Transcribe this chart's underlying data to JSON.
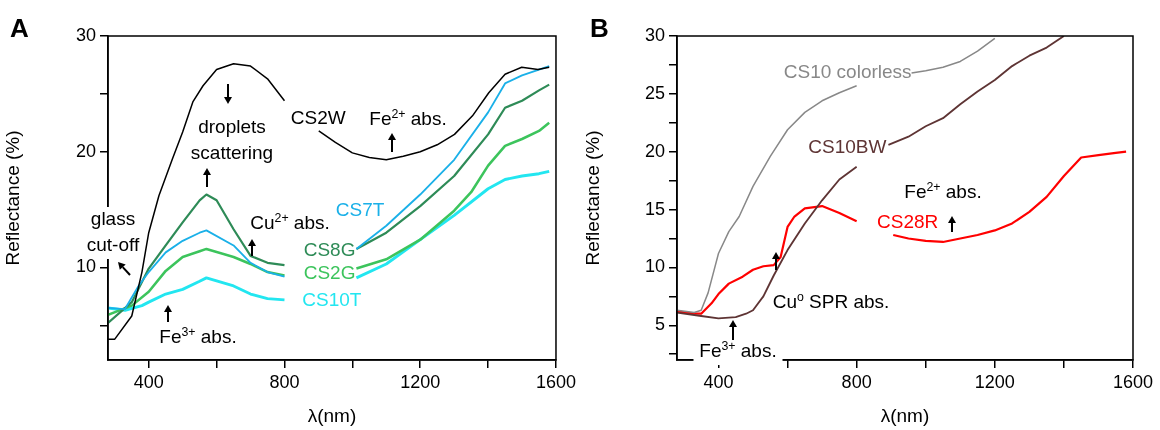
{
  "chart_data": [
    {
      "type": "line",
      "xlabel": "λ(nm)",
      "ylabel": "Reflectance (%)",
      "xlim": [
        280,
        1600
      ],
      "ylim": [
        2,
        30
      ],
      "xticks": [
        400,
        {
          "value": 600,
          "label": null
        },
        800,
        {
          "value": 1000,
          "label": null
        },
        1200,
        {
          "value": 1400,
          "label": null
        },
        1600
      ],
      "yticks": [
        {
          "value": 5,
          "label": null
        },
        10,
        {
          "value": 15,
          "label": null
        },
        20,
        {
          "value": 25,
          "label": null
        },
        30
      ],
      "grid": false,
      "legend": false,
      "annotations": [
        "A",
        "glass\ncut-off",
        "droplets\nscattering",
        "Cu$^{2+}$ abs.",
        "Fe$^{3+}$ abs.",
        "Fe$^{2+}$ abs."
      ],
      "series": [
        {
          "name": "CS2W",
          "color": "#000000",
          "x": [
            280,
            300,
            350,
            380,
            400,
            430,
            470,
            500,
            530,
            560,
            600,
            650,
            700,
            750,
            800,
            850,
            901,
            950,
            1000,
            1050,
            1100,
            1150,
            1200,
            1250,
            1301,
            1354,
            1402,
            1450,
            1499,
            1547,
            1580
          ],
          "values": [
            3.8,
            3.8,
            5.8,
            9.6,
            13.0,
            16.2,
            19.4,
            21.7,
            24.3,
            25.7,
            27.1,
            27.6,
            27.4,
            26.3,
            24.4,
            null,
            21.8,
            20.8,
            19.9,
            19.5,
            19.3,
            19.6,
            20.0,
            20.6,
            21.5,
            23.1,
            25.1,
            26.7,
            27.3,
            27.1,
            27.3
          ]
        },
        {
          "name": "CS7T",
          "color": "#1ab0e8",
          "x": [
            280,
            330,
            370,
            400,
            450,
            500,
            550,
            570,
            650,
            700,
            750,
            800,
            900,
            1012,
            1100,
            1200,
            1300,
            1400,
            1450,
            1500,
            1550,
            1580
          ],
          "values": [
            6.5,
            6.4,
            8.4,
            9.6,
            11.3,
            12.3,
            13.0,
            13.2,
            11.9,
            10.4,
            9.6,
            9.2,
            null,
            11.6,
            13.6,
            16.3,
            19.3,
            23.4,
            25.9,
            26.6,
            27.1,
            27.4
          ]
        },
        {
          "name": "CS8G",
          "color": "#2e8b57",
          "x": [
            280,
            350,
            400,
            450,
            500,
            550,
            570,
            600,
            650,
            700,
            750,
            800,
            900,
            1012,
            1100,
            1200,
            1300,
            1400,
            1450,
            1500,
            1550,
            1580
          ],
          "values": [
            5.2,
            7.0,
            9.9,
            11.9,
            13.9,
            15.8,
            16.3,
            15.8,
            13.3,
            11.0,
            10.4,
            10.2,
            null,
            11.6,
            13.0,
            15.3,
            17.9,
            21.5,
            23.8,
            24.4,
            25.3,
            25.8
          ]
        },
        {
          "name": "CS2G",
          "color": "#3cc45c",
          "x": [
            280,
            350,
            400,
            450,
            500,
            550,
            570,
            650,
            700,
            750,
            800,
            900,
            1012,
            1100,
            1200,
            1300,
            1350,
            1400,
            1450,
            1500,
            1550,
            1580
          ],
          "values": [
            5.9,
            6.7,
            7.9,
            9.7,
            10.9,
            11.4,
            11.6,
            10.9,
            10.3,
            9.6,
            9.3,
            null,
            9.9,
            10.7,
            12.4,
            14.9,
            16.5,
            18.8,
            20.5,
            21.1,
            21.8,
            22.5
          ]
        },
        {
          "name": "CS10T",
          "color": "#22e6f0",
          "x": [
            280,
            330,
            380,
            400,
            450,
            500,
            550,
            570,
            650,
            700,
            750,
            800,
            900,
            1012,
            1100,
            1200,
            1300,
            1400,
            1450,
            1500,
            1550,
            1580
          ],
          "values": [
            6.5,
            6.3,
            6.7,
            7.0,
            7.7,
            8.1,
            8.8,
            9.1,
            8.4,
            7.7,
            7.3,
            7.2,
            null,
            9.1,
            10.3,
            12.4,
            14.5,
            16.8,
            17.6,
            17.9,
            18.1,
            18.3
          ]
        }
      ]
    },
    {
      "type": "line",
      "xlabel": "λ(nm)",
      "ylabel": "Reflectance (%)",
      "xlim": [
        280,
        1600
      ],
      "ylim": [
        2,
        30
      ],
      "xticks": [
        400,
        {
          "value": 600,
          "label": null
        },
        800,
        {
          "value": 1000,
          "label": null
        },
        1200,
        {
          "value": 1400,
          "label": null
        },
        1600
      ],
      "yticks": [
        {
          "value": 2.5,
          "label": null
        },
        5,
        {
          "value": 7.5,
          "label": null
        },
        10,
        {
          "value": 12.5,
          "label": null
        },
        15,
        {
          "value": 17.5,
          "label": null
        },
        20,
        {
          "value": 22.5,
          "label": null
        },
        25,
        {
          "value": 27.5,
          "label": null
        },
        30
      ],
      "grid": false,
      "legend": false,
      "annotations": [
        "B",
        "Fe$^{2+}$ abs.",
        "Cu$^{o}$ SPR abs.",
        "Fe$^{3+}$ abs."
      ],
      "series": [
        {
          "name": "CS10 colorless",
          "color": "#888888",
          "x": [
            280,
            330,
            350,
            370,
            400,
            430,
            460,
            500,
            550,
            600,
            650,
            700,
            750,
            800,
            880,
            959,
            1000,
            1050,
            1100,
            1150,
            1200
          ],
          "values": [
            6.3,
            6.1,
            6.3,
            7.8,
            11.2,
            13.1,
            14.4,
            17.0,
            19.6,
            21.9,
            23.4,
            24.4,
            25.1,
            25.7,
            null,
            26.8,
            27.0,
            27.3,
            27.8,
            28.7,
            29.8
          ]
        },
        {
          "name": "CS10BW",
          "color": "#5e3434",
          "x": [
            280,
            350,
            400,
            450,
            480,
            500,
            530,
            560,
            600,
            650,
            700,
            750,
            800,
            850,
            892,
            950,
            1000,
            1050,
            1100,
            1150,
            1200,
            1250,
            1300,
            1350,
            1400
          ],
          "values": [
            6.1,
            5.8,
            5.6,
            5.7,
            6.0,
            6.3,
            7.5,
            9.3,
            11.5,
            13.8,
            15.8,
            17.6,
            18.7,
            null,
            20.6,
            21.3,
            22.2,
            22.9,
            24.1,
            25.2,
            26.2,
            27.4,
            28.3,
            29.0,
            30.0
          ]
        },
        {
          "name": "CS28R",
          "color": "#ff0000",
          "x": [
            280,
            330,
            350,
            380,
            400,
            430,
            470,
            500,
            530,
            560,
            580,
            600,
            620,
            650,
            700,
            750,
            800,
            850,
            906,
            950,
            1000,
            1050,
            1100,
            1150,
            1200,
            1250,
            1300,
            1350,
            1400,
            1450,
            1500,
            1550,
            1580
          ],
          "values": [
            6.2,
            6.0,
            6.0,
            6.9,
            7.7,
            8.6,
            9.2,
            9.8,
            10.1,
            10.2,
            10.9,
            13.5,
            14.4,
            15.1,
            15.3,
            14.7,
            14.0,
            null,
            12.8,
            12.5,
            12.3,
            12.2,
            12.5,
            12.8,
            13.2,
            13.8,
            14.8,
            16.1,
            17.9,
            19.5,
            19.7,
            19.9,
            20.0
          ]
        }
      ]
    }
  ]
}
